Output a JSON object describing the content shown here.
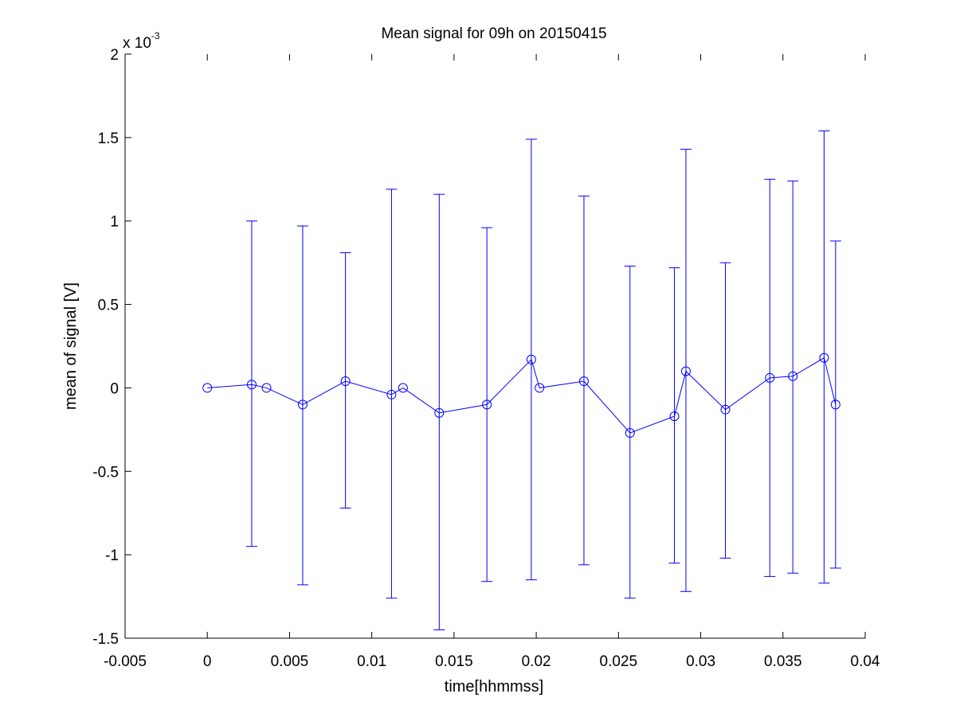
{
  "chart_data": {
    "type": "line",
    "title": "Mean signal for 09h on 20150415",
    "xlabel": "time[hhmmss]",
    "ylabel": "mean of signal [V]",
    "y_exponent": "x 10",
    "y_exponent_power": "-3",
    "xlim": [
      -0.005,
      0.04
    ],
    "ylim": [
      -1.5,
      2
    ],
    "y_scale_factor": 0.001,
    "x_ticks": [
      -0.005,
      0,
      0.005,
      0.01,
      0.015,
      0.02,
      0.025,
      0.03,
      0.035,
      0.04
    ],
    "x_tick_labels": [
      "-0.005",
      "0",
      "0.005",
      "0.01",
      "0.015",
      "0.02",
      "0.025",
      "0.03",
      "0.035",
      "0.04"
    ],
    "y_ticks": [
      -1.5,
      -1,
      -0.5,
      0,
      0.5,
      1,
      1.5,
      2
    ],
    "y_tick_labels": [
      "-1.5",
      "-1",
      "-0.5",
      "0",
      "0.5",
      "1",
      "1.5",
      "2"
    ],
    "grid": false,
    "legend": "none",
    "color": "#0000ff",
    "marker": "circle",
    "series": [
      {
        "x": [
          0,
          0.0027,
          0.0036,
          0.0058,
          0.0084,
          0.0112,
          0.0119,
          0.0141,
          0.017,
          0.0197,
          0.0202,
          0.0229,
          0.0257,
          0.0284,
          0.0291,
          0.0315,
          0.0342,
          0.0356,
          0.0375,
          0.0382
        ],
        "y": [
          0,
          0.02,
          0,
          -0.1,
          0.04,
          -0.04,
          0,
          -0.15,
          -0.1,
          0.17,
          0,
          0.04,
          -0.27,
          -0.17,
          0.1,
          -0.13,
          0.06,
          0.07,
          0.18,
          -0.1
        ],
        "upper": [
          null,
          1.0,
          null,
          0.97,
          0.81,
          1.19,
          null,
          1.16,
          0.96,
          1.49,
          null,
          1.15,
          0.73,
          0.72,
          1.43,
          0.75,
          1.25,
          1.24,
          1.54,
          0.88
        ],
        "lower": [
          null,
          -0.95,
          null,
          -1.18,
          -0.72,
          -1.26,
          null,
          -1.45,
          -1.16,
          -1.15,
          null,
          -1.06,
          -1.26,
          -1.05,
          -1.22,
          -1.02,
          -1.13,
          -1.11,
          -1.17,
          -1.08
        ]
      }
    ]
  }
}
